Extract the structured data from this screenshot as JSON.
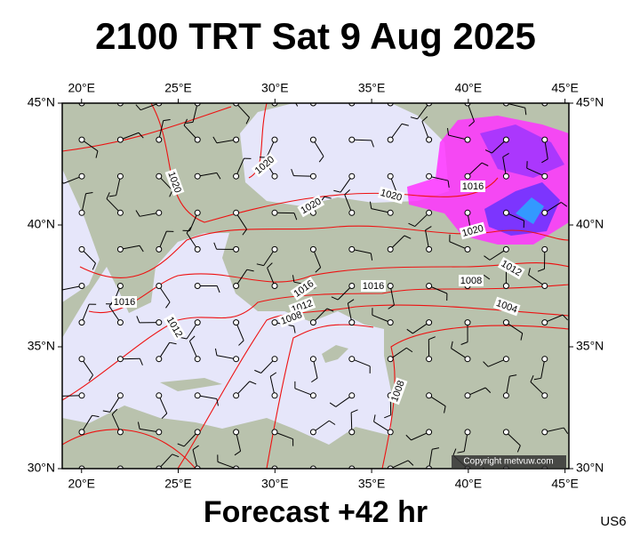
{
  "title": "2100 TRT Sat 9 Aug 2025",
  "footer": "Forecast +42 hr",
  "code": "US6",
  "copyright": "Copyright metvuw.com",
  "map": {
    "lon_range": [
      19,
      45.2
    ],
    "lat_range": [
      30,
      45
    ],
    "lon_ticks": [
      {
        "value": 20,
        "label": "20°E"
      },
      {
        "value": 25,
        "label": "25°E"
      },
      {
        "value": 30,
        "label": "30°E"
      },
      {
        "value": 35,
        "label": "35°E"
      },
      {
        "value": 40,
        "label": "40°E"
      },
      {
        "value": 45,
        "label": "45°E"
      }
    ],
    "lat_ticks": [
      {
        "value": 30,
        "label": "30°N"
      },
      {
        "value": 35,
        "label": "35°N"
      },
      {
        "value": 40,
        "label": "40°N"
      },
      {
        "value": 45,
        "label": "45°N"
      }
    ],
    "isobar_labels": [
      "1020",
      "1020",
      "1020",
      "1020",
      "1016",
      "1020",
      "1016",
      "1016",
      "1012",
      "1008",
      "1004",
      "1016",
      "1012",
      "1012",
      "1008",
      "1008"
    ]
  }
}
